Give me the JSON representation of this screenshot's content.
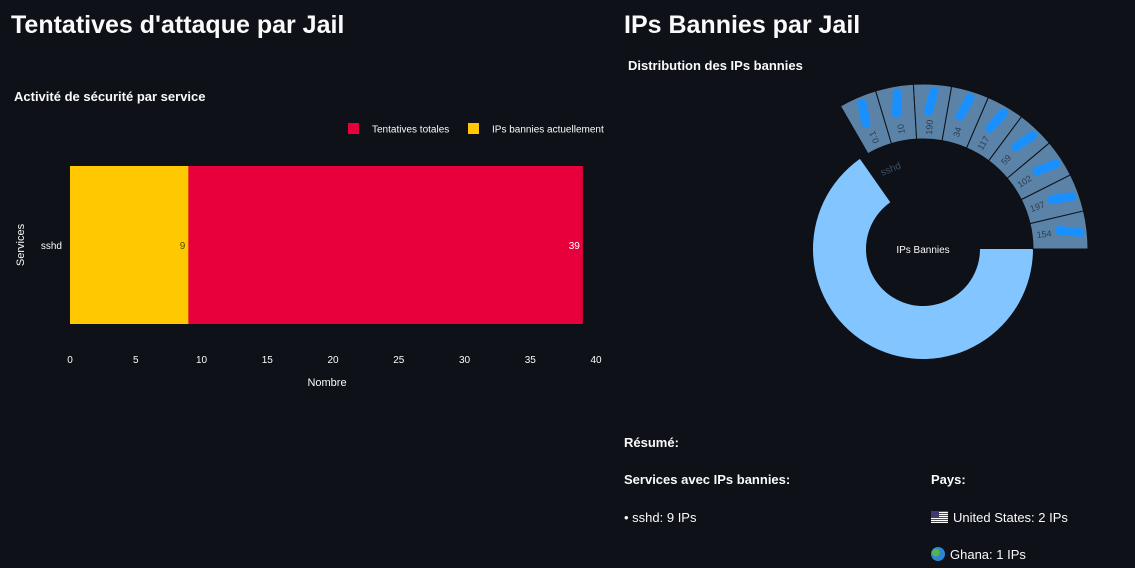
{
  "left": {
    "title": "Tentatives d'attaque par Jail"
  },
  "right": {
    "title": "IPs Bannies par Jail"
  },
  "chart_data": [
    {
      "type": "bar",
      "orientation": "horizontal",
      "barmode": "overlay",
      "title": "Activité de sécurité par service",
      "xlabel": "Nombre",
      "ylabel": "Services",
      "categories": [
        "sshd"
      ],
      "series": [
        {
          "name": "Tentatives totales",
          "values": [
            39
          ],
          "color": "#e8003c"
        },
        {
          "name": "IPs bannies actuellement",
          "values": [
            9
          ],
          "color": "#ffc800"
        }
      ],
      "xlim": [
        0,
        40
      ],
      "xticks": [
        0,
        5,
        10,
        15,
        20,
        25,
        30,
        35,
        40
      ],
      "legend": "top-right",
      "grid": false
    },
    {
      "type": "sunburst",
      "title": "Distribution des IPs bannies",
      "root": "IPs Bannies",
      "inner": [
        {
          "label": "sshd",
          "value": 9,
          "color": "#83c5ff"
        }
      ],
      "outer_labels": [
        "0.1",
        "10",
        "190",
        "34",
        "117",
        "59",
        "102",
        "197",
        "154"
      ],
      "outer_color": "#5b83a8",
      "redaction_color": "#1a90ff"
    }
  ],
  "summary": {
    "title": "Résumé:",
    "services_heading": "Services avec IPs bannies:",
    "service_line": "• sshd: 9 IPs",
    "pays_heading": "Pays:",
    "countries": [
      {
        "flag": "us-flag",
        "text": "United States: 2 IPs"
      },
      {
        "flag": "globe-icon",
        "text": "Ghana: 1 IPs"
      }
    ]
  }
}
